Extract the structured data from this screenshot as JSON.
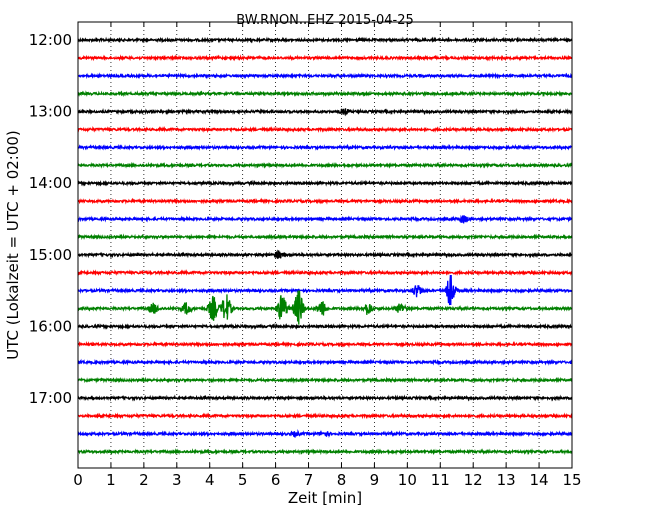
{
  "chart_data": {
    "type": "line",
    "title": "BW.RNON..EHZ 2015-04-25",
    "xlabel": "Zeit  [min]",
    "ylabel": "UTC (Lokalzeit = UTC + 02:00)",
    "xlim": [
      0,
      15
    ],
    "x_ticks": [
      "0",
      "1",
      "2",
      "3",
      "4",
      "5",
      "6",
      "7",
      "8",
      "9",
      "10",
      "11",
      "12",
      "13",
      "14",
      "15"
    ],
    "y_ticks": [
      "12:00",
      "13:00",
      "14:00",
      "15:00",
      "16:00",
      "17:00"
    ],
    "grid": true,
    "trace_colors": [
      "#000000",
      "#ff0000",
      "#0000ff",
      "#008000"
    ],
    "trace_count": 24,
    "traces_per_hour": 4,
    "minutes_per_trace": 15,
    "events": [
      {
        "trace": 4,
        "minute": 8.1,
        "amplitude": 2.5
      },
      {
        "trace": 10,
        "minute": 11.7,
        "amplitude": 3.5
      },
      {
        "trace": 12,
        "minute": 6.1,
        "amplitude": 3.5
      },
      {
        "trace": 14,
        "minute": 10.3,
        "amplitude": 6
      },
      {
        "trace": 14,
        "minute": 11.3,
        "amplitude": 16
      },
      {
        "trace": 15,
        "minute": 2.3,
        "amplitude": 5
      },
      {
        "trace": 15,
        "minute": 3.3,
        "amplitude": 6
      },
      {
        "trace": 15,
        "minute": 4.1,
        "amplitude": 12
      },
      {
        "trace": 15,
        "minute": 4.5,
        "amplitude": 14
      },
      {
        "trace": 15,
        "minute": 6.2,
        "amplitude": 14
      },
      {
        "trace": 15,
        "minute": 6.7,
        "amplitude": 18
      },
      {
        "trace": 15,
        "minute": 7.4,
        "amplitude": 8
      },
      {
        "trace": 15,
        "minute": 8.8,
        "amplitude": 6
      },
      {
        "trace": 15,
        "minute": 9.8,
        "amplitude": 5
      },
      {
        "trace": 22,
        "minute": 6.6,
        "amplitude": 2
      },
      {
        "trace": 22,
        "minute": 7.5,
        "amplitude": 2
      }
    ]
  }
}
